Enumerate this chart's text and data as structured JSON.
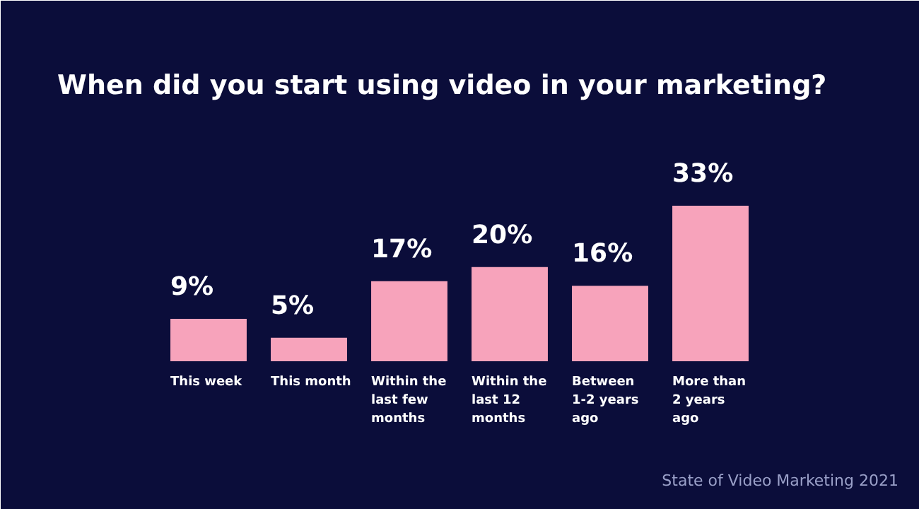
{
  "chart_data": {
    "type": "bar",
    "title": "When did you start using video in your marketing?",
    "categories": [
      "This week",
      "This month",
      "Within the last few months",
      "Within the last 12 months",
      "Between 1-2 years ago",
      "More than 2 years ago"
    ],
    "values": [
      9,
      5,
      17,
      20,
      16,
      33
    ],
    "value_labels": [
      "9%",
      "5%",
      "17%",
      "20%",
      "16%",
      "33%"
    ],
    "color": "#f7a3bb",
    "grid": false,
    "annotations": [
      "State of Video Marketing 2021"
    ]
  }
}
